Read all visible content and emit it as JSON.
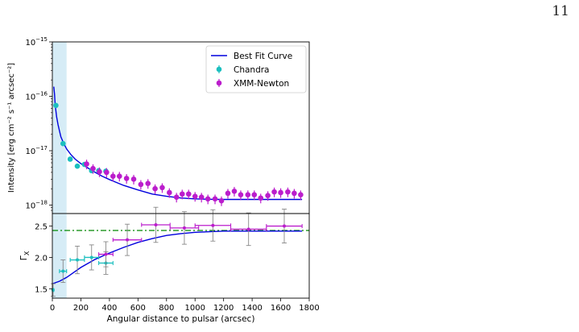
{
  "page": {
    "number": "11"
  },
  "chart_data": [
    {
      "type": "scatter",
      "panel": "top",
      "ylabel": "Intensity [erg cm⁻² s⁻¹ arcsec⁻²]",
      "yscale": "log",
      "ylim": [
        7e-19,
        1e-15
      ],
      "xlim": [
        0,
        1800
      ],
      "yticks": [
        {
          "value": 1e-18,
          "base": "10",
          "exp": "−18"
        },
        {
          "value": 1e-17,
          "base": "10",
          "exp": "−17"
        },
        {
          "value": 1e-16,
          "base": "10",
          "exp": "−16"
        },
        {
          "value": 1e-15,
          "base": "10",
          "exp": "−15"
        }
      ],
      "shaded_region": {
        "x0": 0,
        "x1": 100,
        "color": "#d6ecf6"
      },
      "legend": {
        "placement": "top-right",
        "entries": [
          {
            "label": "Best Fit Curve",
            "kind": "line",
            "color": "#0000dd"
          },
          {
            "label": "Chandra",
            "kind": "errorpoint",
            "color": "#1bbfbf"
          },
          {
            "label": "XMM-Newton",
            "kind": "errorpoint",
            "color": "#bb1dcc"
          }
        ]
      },
      "series": [
        {
          "name": "Best Fit Curve",
          "kind": "line",
          "color": "#0000dd",
          "x": [
            10,
            15,
            20,
            30,
            40,
            50,
            60,
            80,
            100,
            130,
            160,
            200,
            250,
            300,
            350,
            400,
            450,
            500,
            600,
            700,
            800,
            900,
            1000,
            1100,
            1200,
            1300,
            1400,
            1500,
            1600,
            1700,
            1750
          ],
          "y": [
            1.5e-16,
            1.1e-16,
            7e-17,
            4.2e-17,
            3e-17,
            2.3e-17,
            1.8e-17,
            1.35e-17,
            1.08e-17,
            8.5e-18,
            7e-18,
            5.8e-18,
            4.8e-18,
            4e-18,
            3.4e-18,
            2.95e-18,
            2.6e-18,
            2.3e-18,
            1.9e-18,
            1.6e-18,
            1.45e-18,
            1.35e-18,
            1.3e-18,
            1.28e-18,
            1.27e-18,
            1.27e-18,
            1.27e-18,
            1.27e-18,
            1.27e-18,
            1.27e-18,
            1.27e-18
          ]
        },
        {
          "name": "Chandra",
          "kind": "errorpoint",
          "color": "#1bbfbf",
          "x": [
            25,
            75,
            125,
            175,
            225,
            275,
            325,
            375
          ],
          "y": [
            6.8e-17,
            1.35e-17,
            7e-18,
            5.2e-18,
            5.6e-18,
            4.3e-18,
            4.3e-18,
            4.2e-18
          ],
          "yerr": [
            4e-18,
            1e-18,
            5e-19,
            4e-19,
            4e-19,
            3e-19,
            3e-19,
            3e-19
          ]
        },
        {
          "name": "XMM-Newton",
          "kind": "errorpoint",
          "color": "#bb1dcc",
          "x": [
            240,
            285,
            330,
            380,
            425,
            470,
            520,
            570,
            620,
            670,
            720,
            770,
            820,
            870,
            910,
            955,
            1000,
            1045,
            1090,
            1140,
            1185,
            1230,
            1275,
            1320,
            1370,
            1415,
            1460,
            1510,
            1555,
            1600,
            1650,
            1695,
            1740
          ],
          "y": [
            5.7e-18,
            4.7e-18,
            4.1e-18,
            4e-18,
            3.4e-18,
            3.4e-18,
            3.1e-18,
            3e-18,
            2.4e-18,
            2.5e-18,
            2e-18,
            2.1e-18,
            1.7e-18,
            1.4e-18,
            1.6e-18,
            1.6e-18,
            1.45e-18,
            1.4e-18,
            1.3e-18,
            1.3e-18,
            1.2e-18,
            1.65e-18,
            1.8e-18,
            1.55e-18,
            1.55e-18,
            1.55e-18,
            1.35e-18,
            1.5e-18,
            1.75e-18,
            1.7e-18,
            1.75e-18,
            1.65e-18,
            1.55e-18
          ],
          "yerr_frac": 0.2
        }
      ]
    },
    {
      "type": "scatter",
      "panel": "bottom",
      "xlabel": "Angular distance to pulsar (arcsec)",
      "ylabel": "Γ",
      "ylabel_sub": "X",
      "xlim": [
        0,
        1800
      ],
      "ylim": [
        1.35,
        2.7
      ],
      "xticks": [
        0,
        200,
        400,
        600,
        800,
        1000,
        1200,
        1400,
        1600,
        1800
      ],
      "yticks": [
        "1.5",
        "2.0",
        "2.5"
      ],
      "ytick_values": [
        1.5,
        2.0,
        2.5
      ],
      "shaded_region": {
        "x0": 0,
        "x1": 100,
        "color": "#d6ecf6"
      },
      "reference_line": {
        "y": 2.43,
        "style": "dashdot",
        "color": "#008800"
      },
      "series": [
        {
          "name": "Best Fit Curve",
          "kind": "line",
          "color": "#0000dd",
          "x": [
            0,
            50,
            100,
            150,
            200,
            300,
            400,
            500,
            600,
            700,
            800,
            900,
            1000,
            1100,
            1200,
            1300,
            1400,
            1500,
            1600,
            1700,
            1750
          ],
          "y": [
            1.58,
            1.62,
            1.68,
            1.76,
            1.84,
            1.97,
            2.07,
            2.16,
            2.24,
            2.3,
            2.35,
            2.38,
            2.4,
            2.41,
            2.42,
            2.42,
            2.42,
            2.42,
            2.42,
            2.42,
            2.42
          ]
        },
        {
          "name": "Chandra",
          "kind": "crosspoint",
          "color": "#1bbfbf",
          "x": [
            5,
            75,
            175,
            275,
            375
          ],
          "xerr": [
            5,
            25,
            50,
            50,
            50
          ],
          "y": [
            1.48,
            1.78,
            1.96,
            2.0,
            1.91
          ],
          "yerr": [
            0.1,
            0.18,
            0.22,
            0.2,
            0.18
          ]
        },
        {
          "name": "XMM-Newton",
          "kind": "crosspoint",
          "color": "#bb1dcc",
          "x": [
            375,
            525,
            725,
            925,
            1125,
            1375,
            1625
          ],
          "xerr": [
            50,
            100,
            100,
            100,
            125,
            125,
            125
          ],
          "y": [
            2.05,
            2.28,
            2.52,
            2.47,
            2.51,
            2.45,
            2.5
          ],
          "yerr": [
            0.2,
            0.25,
            0.28,
            0.26,
            0.25,
            0.26,
            0.27
          ]
        }
      ]
    }
  ]
}
